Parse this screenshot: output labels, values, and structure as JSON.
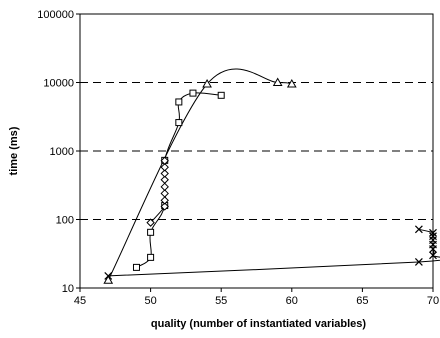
{
  "chart_data": {
    "type": "scatter",
    "title": "",
    "xlabel": "quality (number of instantiated variables)",
    "ylabel": "time (ms)",
    "xlim": [
      45,
      70
    ],
    "ylim": [
      10,
      100000
    ],
    "y_scale": "log",
    "x_ticks": [
      "45",
      "50",
      "55",
      "60",
      "65",
      "70"
    ],
    "y_ticks": [
      "10",
      "100",
      "1000",
      "10000",
      "100000"
    ],
    "grid": "horizontal dashed",
    "legend": "none",
    "series": [
      {
        "marker": "square",
        "points": [
          [
            49,
            20
          ],
          [
            50,
            28
          ],
          [
            50,
            65
          ],
          [
            51,
            160
          ],
          [
            51,
            730
          ],
          [
            52,
            2600
          ],
          [
            52,
            5200
          ],
          [
            53,
            7000
          ],
          [
            55,
            6500
          ]
        ]
      },
      {
        "marker": "diamond",
        "points": [
          [
            50,
            90
          ],
          [
            51,
            155
          ],
          [
            51,
            190
          ],
          [
            51,
            240
          ],
          [
            51,
            300
          ],
          [
            51,
            380
          ],
          [
            51,
            470
          ],
          [
            51,
            580
          ],
          [
            51,
            720
          ]
        ]
      },
      {
        "marker": "triangle",
        "points": [
          [
            47,
            13
          ],
          [
            54,
            9500
          ],
          [
            59,
            10000
          ],
          [
            60,
            9500
          ]
        ]
      },
      {
        "marker": "x",
        "points": [
          [
            47,
            15
          ],
          [
            69,
            24
          ],
          [
            70,
            30
          ],
          [
            70,
            37
          ],
          [
            70,
            43
          ],
          [
            70,
            50
          ],
          [
            70,
            57
          ],
          [
            70,
            64
          ],
          [
            69,
            72
          ]
        ]
      }
    ]
  }
}
